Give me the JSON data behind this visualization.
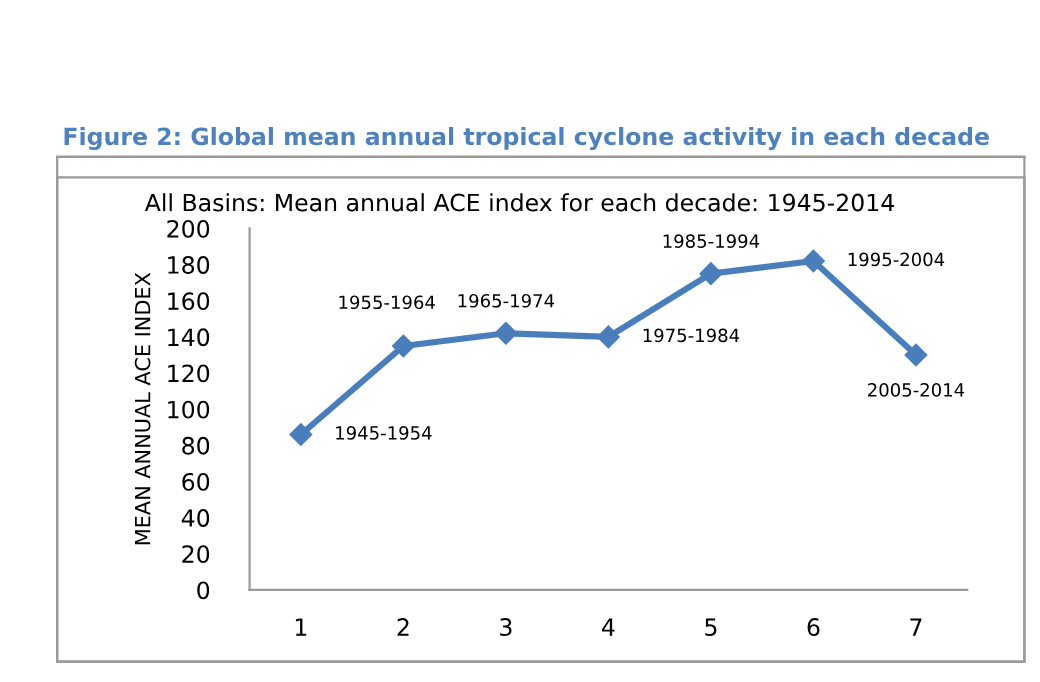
{
  "chart_data": {
    "type": "line",
    "title": "Figure 2: Global mean annual tropical cyclone activity in each decade",
    "subtitle": "All Basins: Mean annual ACE index for each decade: 1945-2014",
    "ylabel": "MEAN ANNUAL ACE INDEX",
    "categories": [
      "1",
      "2",
      "3",
      "4",
      "5",
      "6",
      "7"
    ],
    "series": [
      {
        "color": "#4a7ebb",
        "values": [
          86,
          135,
          142,
          140,
          175,
          182,
          130
        ]
      }
    ],
    "ylim": [
      0,
      200
    ],
    "yticks": [
      0,
      20,
      40,
      60,
      80,
      100,
      120,
      140,
      160,
      180,
      200
    ],
    "marker": "diamond",
    "line_style": "solid",
    "grid": false,
    "legend": false,
    "annotations": [
      {
        "text": "1945-1954",
        "x": "1",
        "y": 86
      },
      {
        "text": "1955-1964",
        "x": "2",
        "y": 135
      },
      {
        "text": "1965-1974",
        "x": "3",
        "y": 142
      },
      {
        "text": "1975-1984",
        "x": "4",
        "y": 140
      },
      {
        "text": "1985-1994",
        "x": "5",
        "y": 175
      },
      {
        "text": "1995-2004",
        "x": "6",
        "y": 182
      },
      {
        "text": "2005-2014",
        "x": "7",
        "y": 130
      }
    ]
  }
}
